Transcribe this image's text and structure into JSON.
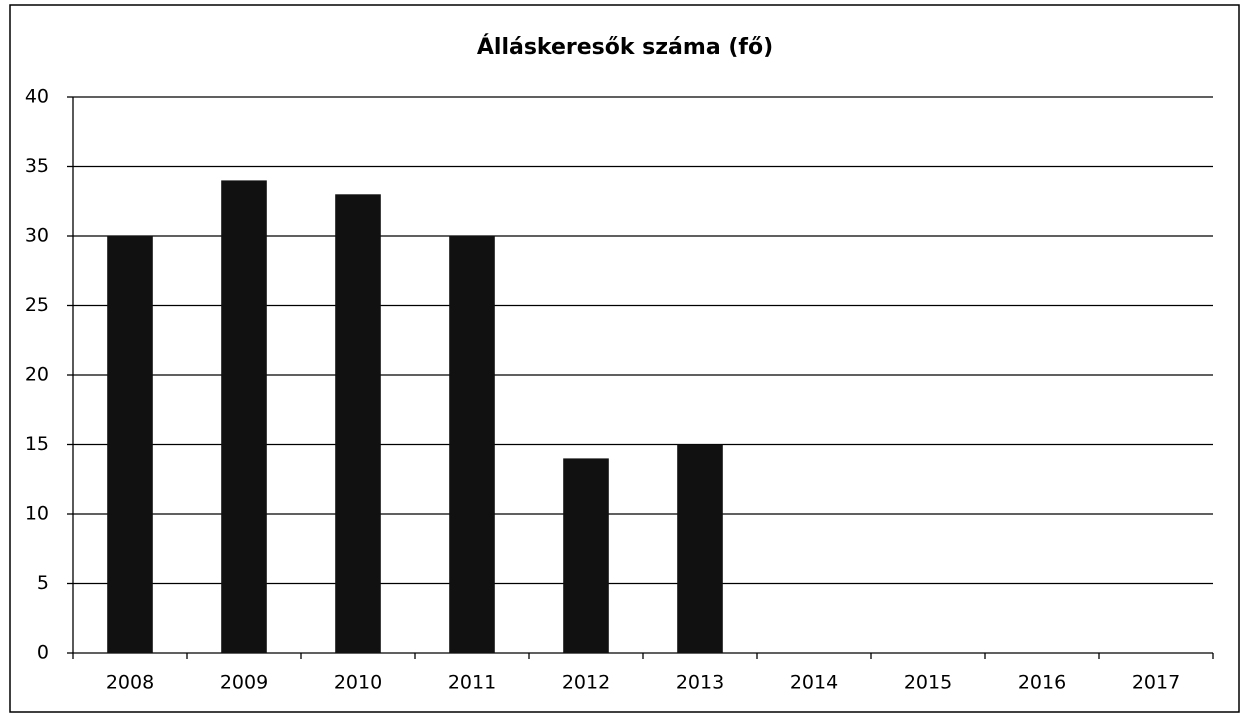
{
  "chart_data": {
    "type": "bar",
    "title": "Álláskeresők száma (fő)",
    "categories": [
      "2008",
      "2009",
      "2010",
      "2011",
      "2012",
      "2013",
      "2014",
      "2015",
      "2016",
      "2017"
    ],
    "values": [
      30,
      34,
      33,
      30,
      14,
      15,
      null,
      null,
      null,
      null
    ],
    "color": "#111111",
    "ylim": [
      0,
      40
    ],
    "yticks": [
      0,
      5,
      10,
      15,
      20,
      25,
      30,
      35,
      40
    ],
    "grid": true
  }
}
